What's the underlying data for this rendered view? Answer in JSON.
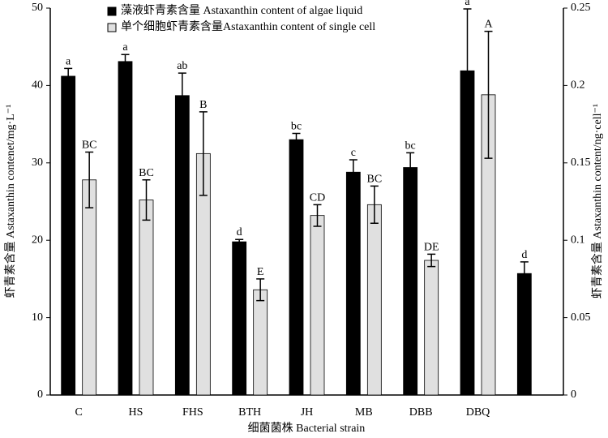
{
  "chart_data": {
    "type": "bar",
    "xlabel": "细菌菌株 Bacterial strain",
    "ylabel": "虾青素含量 Astaxanthin contenet/mg·L⁻¹",
    "y2label": "虾青素含量 Astaxanthin content/ng·cell⁻¹",
    "categories": [
      "C",
      "HS",
      "FHS",
      "BTH",
      "JH",
      "MB",
      "DBB",
      "DBQ",
      null
    ],
    "series": [
      {
        "name": "藻液虾青素含量 Astaxanthin content of algae liquid",
        "color": "#000000",
        "values": [
          41.2,
          43.1,
          38.7,
          19.8,
          33.0,
          28.8,
          29.4,
          41.9,
          15.7
        ],
        "errors": [
          1.0,
          0.9,
          2.9,
          0.3,
          0.8,
          1.6,
          1.9,
          8.0,
          1.5
        ],
        "labels": [
          "a",
          "a",
          "ab",
          "d",
          "bc",
          "c",
          "bc",
          "a",
          "d"
        ]
      },
      {
        "name": "单个细胞虾青素含量Astaxanthin content of single cell",
        "color": "#e0e0e0",
        "axis": "y2",
        "values": [
          0.139,
          0.126,
          0.156,
          0.068,
          0.116,
          0.123,
          0.087,
          0.194,
          null
        ],
        "errors": [
          0.018,
          0.013,
          0.027,
          0.007,
          0.007,
          0.012,
          0.004,
          0.041,
          null
        ],
        "labels": [
          "BC",
          "BC",
          "B",
          "E",
          "CD",
          "BC",
          "DE",
          "A",
          null
        ]
      }
    ],
    "ylim": [
      0,
      50
    ],
    "yticks": [
      0,
      10,
      20,
      30,
      40,
      50
    ],
    "y2lim": [
      0,
      0.25
    ],
    "y2ticks": [
      0,
      0.05,
      0.1,
      0.15,
      0.2,
      0.25
    ]
  }
}
